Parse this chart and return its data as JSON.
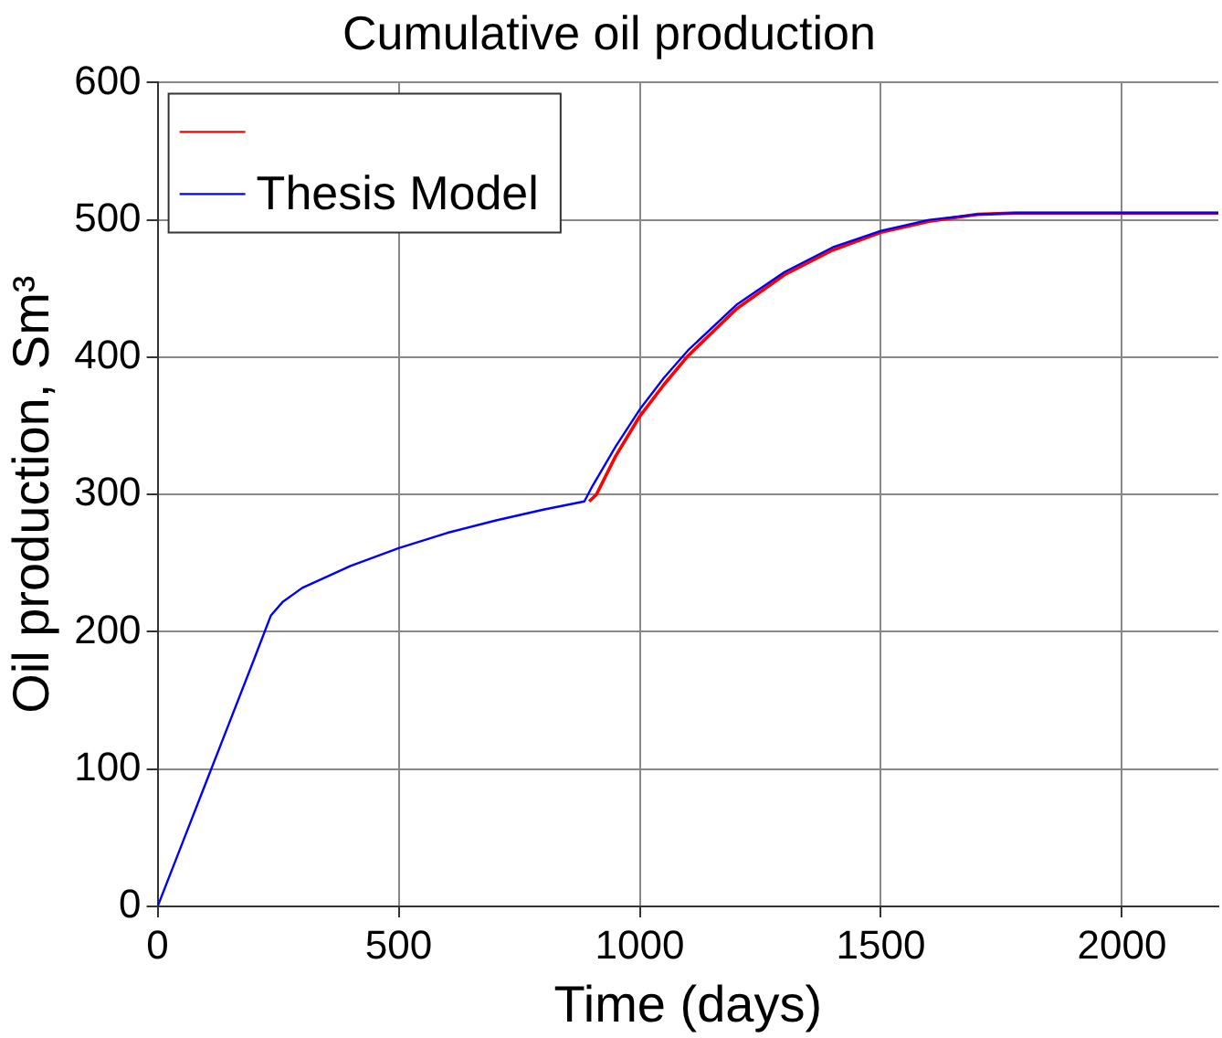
{
  "chart_data": {
    "type": "line",
    "title": "Cumulative oil production",
    "xlabel": "Time (days)",
    "ylabel": "Oil production, Sm³",
    "xlim": [
      0,
      2200
    ],
    "xticks": [
      0,
      500,
      1000,
      1500,
      2000
    ],
    "ylim": [
      0,
      600
    ],
    "yticks": [
      0,
      100,
      200,
      300,
      400,
      500,
      600
    ],
    "grid": true,
    "legend": "top left",
    "line_style": "solid",
    "marker": "none",
    "series": [
      {
        "color": "#ff0000",
        "x": [
          895,
          910,
          950,
          1000,
          1050,
          1100,
          1200,
          1300,
          1400,
          1500,
          1600,
          1700,
          1780,
          2200
        ],
        "values": [
          295,
          300,
          328,
          357,
          380,
          401,
          435,
          460,
          478,
          491,
          499,
          504,
          505,
          505
        ]
      },
      {
        "name": "Thesis Model",
        "color": "#0000ff",
        "x": [
          0,
          50,
          100,
          150,
          200,
          235,
          260,
          300,
          400,
          500,
          600,
          700,
          800,
          885,
          900,
          950,
          1000,
          1050,
          1100,
          1200,
          1300,
          1400,
          1500,
          1600,
          1700,
          1780,
          2200
        ],
        "values": [
          0,
          45,
          90,
          135,
          180,
          212,
          222,
          232,
          248,
          261,
          272,
          281,
          289,
          295,
          305,
          335,
          362,
          385,
          405,
          438,
          462,
          480,
          492,
          500,
          504,
          505,
          505
        ]
      }
    ]
  }
}
